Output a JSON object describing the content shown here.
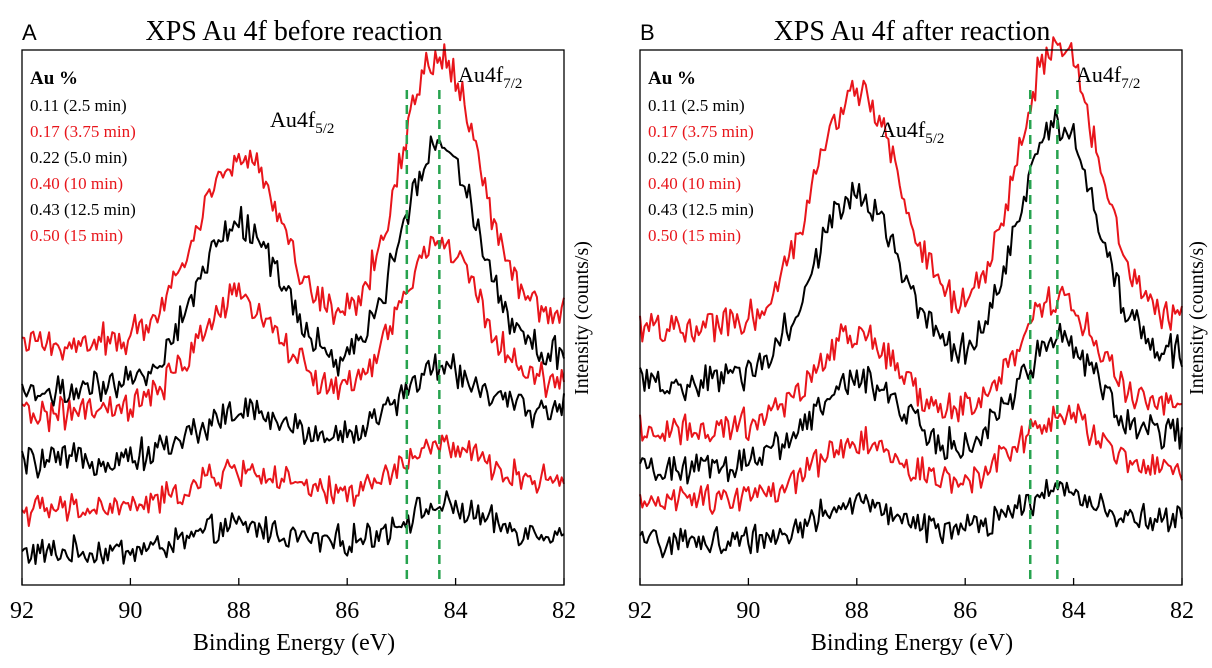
{
  "panels": [
    {
      "letter": "A",
      "title": "XPS Au 4f before reaction",
      "xlabel": "Binding Energy (eV)",
      "ylabel": "Intensity (counts/s)",
      "legend_heading": "Au %",
      "peak_labels": [
        {
          "base": "Au4f",
          "sub": "5/2",
          "x": 88.0
        },
        {
          "base": "Au4f",
          "sub": "7/2",
          "x": 84.0
        }
      ]
    },
    {
      "letter": "B",
      "title": "XPS Au 4f after reaction",
      "xlabel": "Binding Energy (eV)",
      "ylabel": "Intensity (counts/s)",
      "legend_heading": "Au %",
      "peak_labels": [
        {
          "base": "Au4f",
          "sub": "5/2",
          "x": 88.0
        },
        {
          "base": "Au4f",
          "sub": "7/2",
          "x": 84.0
        }
      ]
    }
  ],
  "colors": {
    "black": "#000000",
    "red": "#e8151b",
    "dashed": "#27a34f",
    "axis": "#000000"
  },
  "chart_data": [
    {
      "type": "line",
      "title": "XPS Au 4f before reaction",
      "xlabel": "Binding Energy (eV)",
      "ylabel": "Intensity (counts/s)",
      "xlim": [
        92,
        82
      ],
      "ylim": [
        0,
        100
      ],
      "xticks": [
        "92",
        "90",
        "88",
        "86",
        "84",
        "82"
      ],
      "x_reversed": true,
      "reference_lines": [
        84.9,
        84.3
      ],
      "series": [
        {
          "name": "0.11 (2.5 min)",
          "color": "#000000",
          "baseline": 6,
          "edge_right": 10,
          "peak5": 4,
          "peak7": 6,
          "noise": 2.2
        },
        {
          "name": "0.17 (3.75 min)",
          "color": "#e8151b",
          "baseline": 14,
          "edge_right": 20,
          "peak5": 6,
          "peak7": 8,
          "noise": 2.2
        },
        {
          "name": "0.22 (5.0 min)",
          "color": "#000000",
          "baseline": 23,
          "edge_right": 33,
          "peak5": 7,
          "peak7": 11,
          "noise": 2.3
        },
        {
          "name": "0.40 (10 min)",
          "color": "#e8151b",
          "baseline": 32,
          "edge_right": 38,
          "peak5": 20,
          "peak7": 28,
          "noise": 2.4
        },
        {
          "name": "0.43 (12.5 min)",
          "color": "#000000",
          "baseline": 36,
          "edge_right": 43,
          "peak5": 30,
          "peak7": 42,
          "noise": 2.5
        },
        {
          "name": "0.50 (15 min)",
          "color": "#e8151b",
          "baseline": 45,
          "edge_right": 50,
          "peak5": 34,
          "peak7": 51,
          "noise": 2.5
        }
      ]
    },
    {
      "type": "line",
      "title": "XPS Au 4f after reaction",
      "xlabel": "Binding Energy (eV)",
      "ylabel": "Intensity (counts/s)",
      "xlim": [
        92,
        82
      ],
      "ylim": [
        0,
        100
      ],
      "xticks": [
        "92",
        "90",
        "88",
        "86",
        "84",
        "82"
      ],
      "x_reversed": true,
      "reference_lines": [
        84.8,
        84.3
      ],
      "series": [
        {
          "name": "0.11 (2.5 min)",
          "color": "#000000",
          "baseline": 8,
          "edge_right": 12,
          "peak5": 6,
          "peak7": 7,
          "noise": 2.2
        },
        {
          "name": "0.17 (3.75 min)",
          "color": "#e8151b",
          "baseline": 16,
          "edge_right": 22,
          "peak5": 9,
          "peak7": 12,
          "noise": 2.2
        },
        {
          "name": "0.22 (5.0 min)",
          "color": "#000000",
          "baseline": 22,
          "edge_right": 28,
          "peak5": 15,
          "peak7": 20,
          "noise": 2.3
        },
        {
          "name": "0.40 (10 min)",
          "color": "#e8151b",
          "baseline": 29,
          "edge_right": 33,
          "peak5": 17,
          "peak7": 22,
          "noise": 2.4
        },
        {
          "name": "0.43 (12.5 min)",
          "color": "#000000",
          "baseline": 38,
          "edge_right": 43,
          "peak5": 34,
          "peak7": 45,
          "noise": 2.5
        },
        {
          "name": "0.50 (15 min)",
          "color": "#e8151b",
          "baseline": 48,
          "edge_right": 50,
          "peak5": 44,
          "peak7": 52,
          "noise": 2.5
        }
      ]
    }
  ]
}
